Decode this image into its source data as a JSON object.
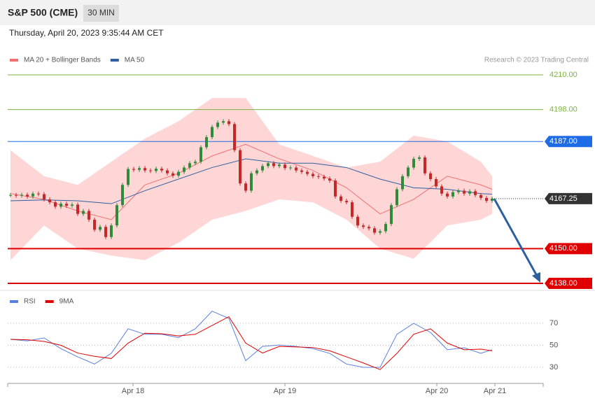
{
  "header": {
    "symbol": "S&P 500 (CME)",
    "interval": "30 MIN",
    "timestamp": "Thursday, April 20, 2023 9:35:44 AM CET"
  },
  "chart_data": [
    {
      "type": "candlestick",
      "credit": "Research © 2023 Trading Central",
      "closes": [
        4168.5,
        4168.3,
        4168.6,
        4168.0,
        4169.0,
        4168.8,
        4167.0,
        4166.0,
        4164.5,
        4165.5,
        4164.8,
        4165.2,
        4162.0,
        4163.0,
        4160.0,
        4156.5,
        4157.5,
        4154.0,
        4158.0,
        4165.0,
        4172.0,
        4177.5,
        4177.2,
        4177.8,
        4177.0,
        4176.8,
        4177.6,
        4177.0,
        4176.0,
        4175.2,
        4176.5,
        4178.0,
        4179.5,
        4180.0,
        4185.0,
        4188.5,
        4192.0,
        4193.5,
        4194.0,
        4193.0,
        4184.0,
        4172.5,
        4170.0,
        4176.0,
        4177.0,
        4178.5,
        4179.5,
        4178.5,
        4179.0,
        4177.8,
        4178.0,
        4177.0,
        4176.5,
        4175.8,
        4175.0,
        4174.8,
        4174.2,
        4173.5,
        4168.0,
        4166.5,
        4166.0,
        4161.0,
        4158.0,
        4157.5,
        4157.0,
        4155.5,
        4156.0,
        4158.5,
        4165.0,
        4170.5,
        4175.0,
        4178.0,
        4181.0,
        4181.5,
        4176.0,
        4174.0,
        4171.5,
        4169.0,
        4168.0,
        4169.5,
        4170.0,
        4169.0,
        4169.8,
        4168.5,
        4167.5,
        4166.5,
        4167.25
      ],
      "up_color": "#2e8b3a",
      "down_color": "#c62828",
      "xlim": [
        -0.5,
        95.125
      ],
      "ylim": [
        4135,
        4213
      ],
      "indicator_x": [
        0,
        6,
        12,
        18,
        24,
        30,
        36,
        42,
        48,
        54,
        60,
        66,
        72,
        78,
        84,
        86
      ],
      "series": [
        {
          "name": "MA 20 + Bollinger Bands",
          "color": "#f07070",
          "band_color": "#ffd6d6",
          "values": [
            4169,
            4167,
            4163,
            4160,
            4172,
            4176,
            4182,
            4186,
            4181,
            4177,
            4171,
            4162,
            4167,
            4175,
            4172,
            4170.5
          ],
          "upper": [
            4184,
            4175,
            4172,
            4180,
            4188,
            4194,
            4202,
            4202,
            4186,
            4182,
            4178,
            4180,
            4189,
            4187,
            4180,
            4175
          ],
          "lower": [
            4146,
            4158,
            4150,
            4147.6,
            4146,
            4152,
            4160,
            4163,
            4167,
            4166,
            4160,
            4150,
            4146.5,
            4158,
            4160,
            4162
          ]
        },
        {
          "name": "MA 50",
          "color": "#2f5fa0",
          "values": [
            4166.5,
            4166.8,
            4166.5,
            4165.5,
            4170,
            4174,
            4178,
            4181,
            4179.5,
            4179.5,
            4178,
            4174,
            4171,
            4170.5,
            4169,
            4168.8
          ]
        }
      ],
      "levels": [
        {
          "value": 4210,
          "label": "4210.00",
          "color": "#7cb342",
          "badge": false
        },
        {
          "value": 4198,
          "label": "4198.00",
          "color": "#7cb342",
          "badge": false
        },
        {
          "value": 4187,
          "label": "4187.00",
          "color": "#1e6be6",
          "badge": true
        },
        {
          "value": 4167.25,
          "label": "4167.25",
          "color": "#333333",
          "badge": true,
          "style": "dotted"
        },
        {
          "value": 4150,
          "label": "4150.00",
          "color": "#e00000",
          "badge": true
        },
        {
          "value": 4138,
          "label": "4138.00",
          "color": "#e00000",
          "badge": true
        }
      ]
    },
    {
      "type": "line",
      "x": [
        0,
        3,
        6,
        9,
        12,
        15,
        18,
        21,
        24,
        27,
        30,
        33,
        36,
        39,
        42,
        45,
        48,
        51,
        54,
        57,
        60,
        63,
        66,
        69,
        72,
        75,
        78,
        81,
        84,
        86
      ],
      "xlim": [
        -0.5,
        95.125
      ],
      "ylim": [
        17,
        84
      ],
      "yticks": [
        70,
        50,
        30
      ],
      "xticks": [
        {
          "value": 21.875,
          "label": "Apr 18"
        },
        {
          "value": 49,
          "label": "Apr 19"
        },
        {
          "value": 76.125,
          "label": "Apr 20"
        },
        {
          "value": 86.5,
          "label": "Apr 21"
        }
      ],
      "series": [
        {
          "name": "RSI",
          "color": "#5b7fde",
          "values": [
            55.4,
            54,
            56.7,
            47,
            39.5,
            33,
            42.7,
            65,
            60,
            60,
            57,
            65,
            81,
            74.4,
            36,
            49,
            50.3,
            49,
            47,
            42.7,
            33,
            30,
            30,
            60,
            70,
            61.7,
            46,
            47.8,
            42.7,
            46
          ]
        },
        {
          "name": "9MA",
          "color": "#e00000",
          "values": [
            55.4,
            55,
            53.5,
            50,
            43,
            40,
            38,
            52,
            61,
            60.5,
            58.5,
            60,
            68,
            76,
            52,
            43,
            49,
            48.5,
            48,
            45,
            39.5,
            34,
            28,
            42.7,
            60,
            65,
            52,
            46,
            46.5,
            45
          ]
        }
      ]
    }
  ]
}
